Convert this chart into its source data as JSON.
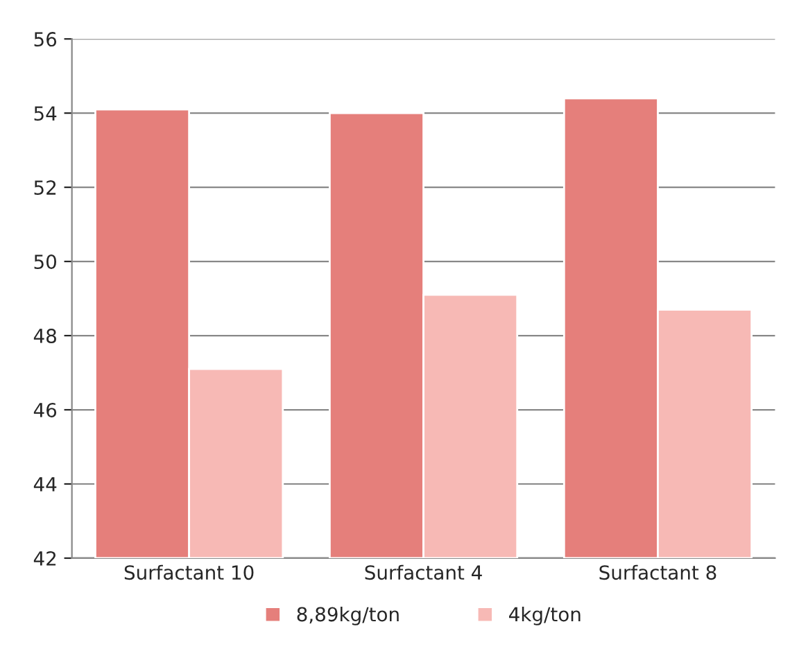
{
  "chart_data": {
    "type": "bar",
    "categories": [
      "Surfactant 10",
      "Surfactant 4",
      "Surfactant 8"
    ],
    "series": [
      {
        "name": "8,89kg/ton",
        "color": "#e57f7b",
        "values": [
          54.1,
          54.0,
          54.4
        ]
      },
      {
        "name": "4kg/ton",
        "color": "#f7b9b5",
        "values": [
          47.1,
          49.1,
          48.7
        ]
      }
    ],
    "ylim": [
      42,
      56
    ],
    "yticks": [
      42,
      44,
      46,
      48,
      50,
      52,
      54,
      56
    ],
    "grid": "y",
    "legend": "bottom"
  }
}
